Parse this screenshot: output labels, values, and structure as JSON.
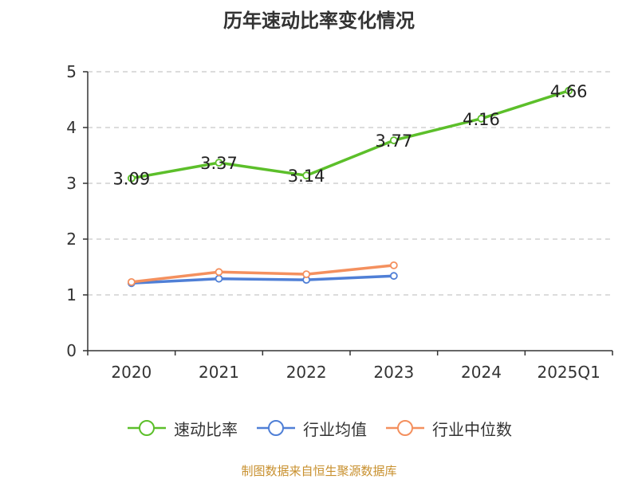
{
  "title": "历年速动比率变化情况",
  "source": "制图数据来自恒生聚源数据库",
  "chart_data": {
    "type": "line",
    "title": "历年速动比率变化情况",
    "xlabel": "",
    "ylabel": "",
    "categories": [
      "2020",
      "2021",
      "2022",
      "2023",
      "2024",
      "2025Q1"
    ],
    "ylim": [
      0,
      5
    ],
    "yticks": [
      0,
      1,
      2,
      3,
      4,
      5
    ],
    "grid": true,
    "legend_position": "bottom",
    "series": [
      {
        "name": "速动比率",
        "color": "#5cbf2a",
        "values": [
          3.09,
          3.37,
          3.14,
          3.77,
          4.16,
          4.66
        ],
        "show_labels": true
      },
      {
        "name": "行业均值",
        "color": "#4f7fd6",
        "values": [
          1.21,
          1.29,
          1.27,
          1.34,
          null,
          null
        ],
        "show_labels": false
      },
      {
        "name": "行业中位数",
        "color": "#f4905e",
        "values": [
          1.23,
          1.41,
          1.37,
          1.53,
          null,
          null
        ],
        "show_labels": false
      }
    ]
  }
}
